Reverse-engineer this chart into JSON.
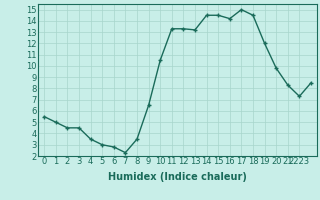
{
  "x": [
    0,
    1,
    2,
    3,
    4,
    5,
    6,
    7,
    8,
    9,
    10,
    11,
    12,
    13,
    14,
    15,
    16,
    17,
    18,
    19,
    20,
    21,
    22,
    23
  ],
  "y": [
    5.5,
    5.0,
    4.5,
    4.5,
    3.5,
    3.0,
    2.8,
    2.3,
    3.5,
    6.5,
    10.5,
    13.3,
    13.3,
    13.2,
    14.5,
    14.5,
    14.2,
    15.0,
    14.5,
    12.0,
    9.8,
    8.3,
    7.3,
    8.5
  ],
  "line_color": "#1a6b5a",
  "marker": "+",
  "marker_size": 3,
  "marker_color": "#1a6b5a",
  "bg_color": "#c8eee8",
  "grid_color": "#a8d5cc",
  "xlabel": "Humidex (Indice chaleur)",
  "xlim": [
    -0.5,
    23.5
  ],
  "ylim": [
    2,
    15.5
  ],
  "xtick_pos": [
    0,
    1,
    2,
    3,
    4,
    5,
    6,
    7,
    8,
    9,
    10,
    11,
    12,
    13,
    14,
    15,
    16,
    17,
    18,
    19,
    20,
    21,
    22
  ],
  "xtick_lab": [
    "0",
    "1",
    "2",
    "3",
    "4",
    "5",
    "6",
    "7",
    "8",
    "9",
    "10",
    "11",
    "12",
    "13",
    "14",
    "15",
    "16",
    "17",
    "18",
    "19",
    "20",
    "21",
    "2223"
  ],
  "ytick_vals": [
    2,
    3,
    4,
    5,
    6,
    7,
    8,
    9,
    10,
    11,
    12,
    13,
    14,
    15
  ],
  "xlabel_fontsize": 7,
  "tick_fontsize": 6,
  "line_width": 1.0
}
